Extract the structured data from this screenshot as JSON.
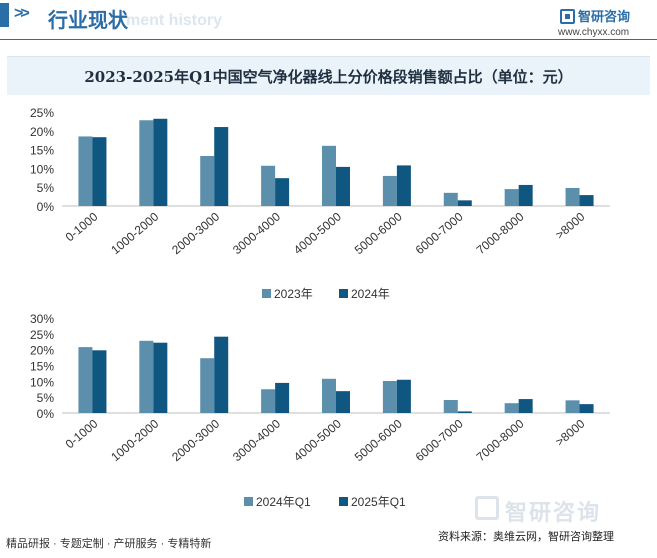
{
  "header": {
    "title": "行业现状",
    "ghost_text": "ment history",
    "logo_text": "智研咨询",
    "site": "www.chyxx.com"
  },
  "chart_title": "2023-2025年Q1中国空气净化器线上分价格段销售额占比（单位：元）",
  "colors": {
    "series_a": "#5b8fac",
    "series_b": "#0f5780",
    "accent": "#2b6ea7"
  },
  "chart_data": [
    {
      "type": "bar",
      "categories": [
        "0-1000",
        "1000-2000",
        "2000-3000",
        "3000-4000",
        "4000-5000",
        "5000-6000",
        "6000-7000",
        "7000-8000",
        ">8000"
      ],
      "series": [
        {
          "name": "2023年",
          "values": [
            18.5,
            22.8,
            13.3,
            10.7,
            16.0,
            8.0,
            3.5,
            4.5,
            4.8
          ]
        },
        {
          "name": "2024年",
          "values": [
            18.3,
            23.2,
            21.0,
            7.4,
            10.4,
            10.8,
            1.5,
            5.6,
            2.9
          ]
        }
      ],
      "yticks": [
        "0%",
        "5%",
        "10%",
        "15%",
        "20%",
        "25%"
      ],
      "ylim": [
        0,
        25
      ]
    },
    {
      "type": "bar",
      "categories": [
        "0-1000",
        "1000-2000",
        "2000-3000",
        "3000-4000",
        "4000-5000",
        "5000-6000",
        "6000-7000",
        "7000-8000",
        ">8000"
      ],
      "series": [
        {
          "name": "2024年Q1",
          "values": [
            20.8,
            22.8,
            17.3,
            7.5,
            10.8,
            10.1,
            4.1,
            3.1,
            4.0
          ]
        },
        {
          "name": "2025年Q1",
          "values": [
            19.8,
            22.2,
            24.1,
            9.5,
            6.9,
            10.5,
            0.5,
            4.4,
            2.8
          ]
        }
      ],
      "yticks": [
        "0%",
        "5%",
        "10%",
        "15%",
        "20%",
        "25%",
        "30%"
      ],
      "ylim": [
        0,
        30
      ]
    }
  ],
  "footer": {
    "left": "精品研报 · 专题定制 · 产研服务 · 专精特新",
    "source": "资料来源：奥维云网，智研咨询整理",
    "watermark": "智研咨询"
  }
}
